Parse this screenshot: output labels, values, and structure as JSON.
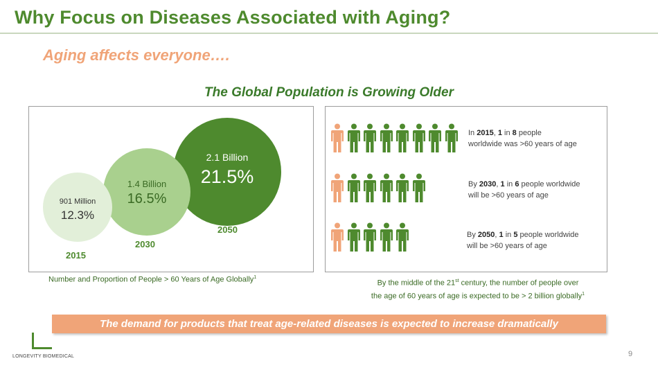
{
  "slide": {
    "title": "Why Focus on Diseases Associated with Aging?",
    "subtitle": "Aging affects everyone….",
    "section_title": "The Global Population is Growing Older",
    "page_number": "9"
  },
  "bubbles": [
    {
      "year": "2015",
      "count": "901 Million",
      "pct": "12.3%"
    },
    {
      "year": "2030",
      "count": "1.4 Billion",
      "pct": "16.5%"
    },
    {
      "year": "2050",
      "count": "2.1 Billion",
      "pct": "21.5%"
    }
  ],
  "left_caption": {
    "text": "Number and Proportion of People > 60 Years of Age Globally",
    "sup": "1"
  },
  "ratios": [
    {
      "pre": "In ",
      "year": "2015",
      "sep": ", ",
      "one": "1",
      "mid": " in ",
      "n": "8",
      "post1": " people",
      "line2": "worldwide was >60 years of age",
      "total": 8
    },
    {
      "pre": "By ",
      "year": "2030",
      "sep": ", ",
      "one": "1",
      "mid": " in ",
      "n": "6",
      "post1": " people worldwide",
      "line2": "will be >60 years of age",
      "total": 6
    },
    {
      "pre": "By ",
      "year": "2050",
      "sep": ", ",
      "one": "1",
      "mid": " in ",
      "n": "5",
      "post1": " people worldwide",
      "line2": "will be >60 years of age",
      "total": 5
    }
  ],
  "right_caption": {
    "line1_a": "By the middle of the 21",
    "line1_sup": "st",
    "line1_b": " century, the number of people over",
    "line2": "the age of 60 years of age is expected to be > 2 billion globally",
    "line2_sup": "1"
  },
  "banner": "The demand for products that treat age-related diseases is expected to increase dramatically",
  "logo": {
    "text": "LONGEVITY BIOMEDICAL"
  },
  "colors": {
    "green": "#4e8a2e",
    "light_green": "#a9d08e",
    "pale_green": "#e2efd9",
    "orange": "#f0a478",
    "person_green": "#4e8a2e",
    "person_orange": "#f0a478"
  },
  "icons": {
    "person": "person-icon"
  }
}
